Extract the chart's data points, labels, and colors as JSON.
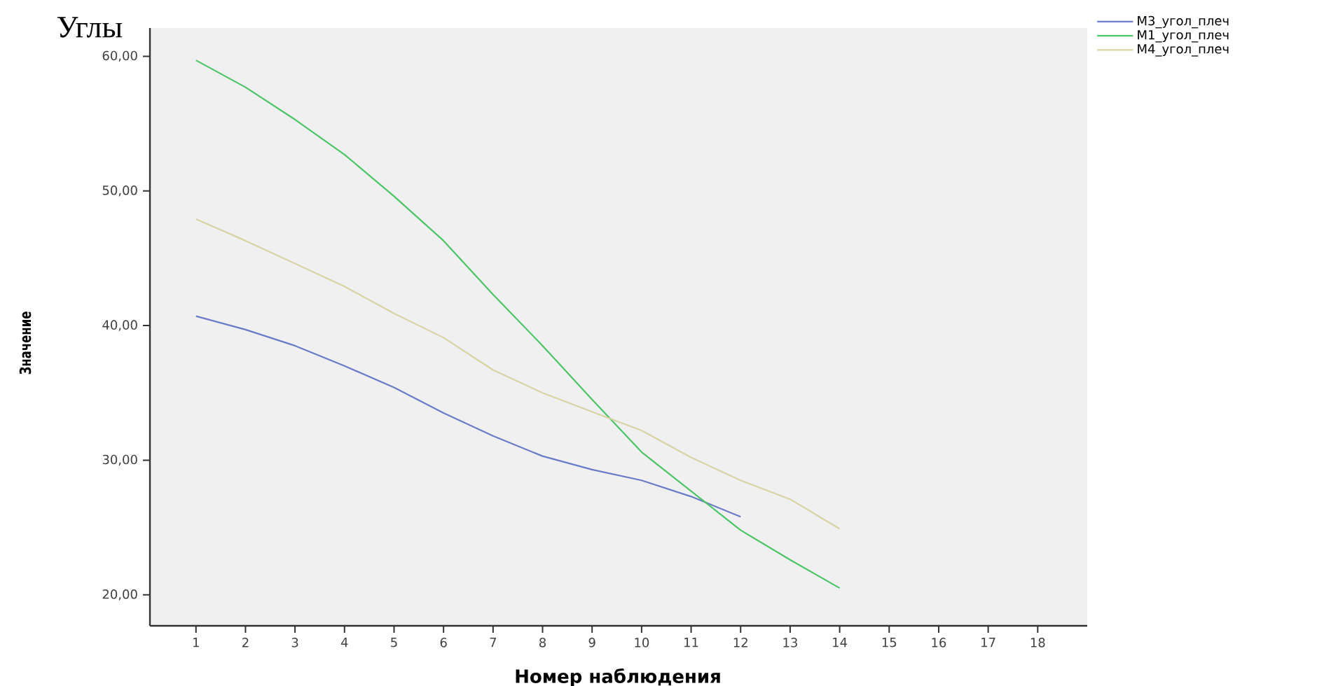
{
  "chart_data": {
    "type": "line",
    "title": "Углы",
    "xlabel": "Номер наблюдения",
    "ylabel": "Значение",
    "categories": [
      "1",
      "2",
      "3",
      "4",
      "5",
      "6",
      "7",
      "8",
      "9",
      "10",
      "11",
      "12",
      "13",
      "14",
      "15",
      "16",
      "17",
      "18"
    ],
    "series": [
      {
        "name": "M3_угол_плеч",
        "color": "#6a7bc8",
        "values": [
          40.7,
          39.7,
          38.5,
          37.0,
          35.4,
          33.5,
          31.8,
          30.3,
          29.3,
          28.5,
          27.3,
          25.8,
          null,
          null,
          null,
          null,
          null,
          null
        ]
      },
      {
        "name": "M1_угол_плеч",
        "color": "#4cc468",
        "values": [
          59.7,
          57.7,
          55.3,
          52.7,
          49.6,
          46.3,
          42.3,
          38.5,
          34.5,
          30.6,
          27.7,
          24.8,
          22.6,
          20.5,
          null,
          null,
          null,
          null
        ]
      },
      {
        "name": "M4_угол_плеч",
        "color": "#d8d3a4",
        "values": [
          47.9,
          46.3,
          44.6,
          42.9,
          40.9,
          39.1,
          36.7,
          35.0,
          33.6,
          32.2,
          30.2,
          28.5,
          27.1,
          24.9,
          null,
          null,
          null,
          null
        ]
      }
    ],
    "ylim": [
      17.7,
      62.1
    ],
    "yticks": [
      {
        "value": 20,
        "label": "20,00"
      },
      {
        "value": 30,
        "label": "30,00"
      },
      {
        "value": 40,
        "label": "40,00"
      },
      {
        "value": 50,
        "label": "50,00"
      },
      {
        "value": 60,
        "label": "60,00"
      }
    ],
    "legend": "right",
    "grid": false,
    "marker": "none",
    "line_style": "solid"
  }
}
